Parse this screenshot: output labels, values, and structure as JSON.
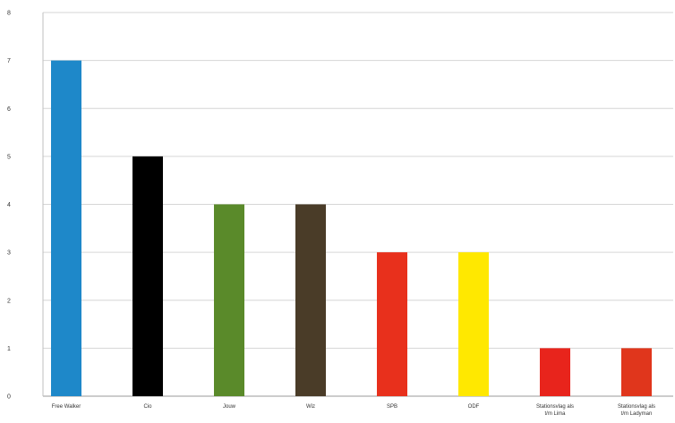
{
  "chart_data": {
    "type": "bar",
    "title": "",
    "xlabel": "",
    "ylabel": "",
    "ylim": [
      0,
      8
    ],
    "yticks": [
      0,
      1,
      2,
      3,
      4,
      5,
      6,
      7,
      8
    ],
    "grid": true,
    "legend": "none",
    "categories": [
      "Free Walker",
      "Cio",
      "Jouw",
      "Wiz",
      "SPB",
      "ODF",
      "Stationsvlag als t/m Lima",
      "Stationsvlag als t/m Ladyman"
    ],
    "values": [
      7,
      5,
      4,
      4,
      3,
      3,
      1,
      1
    ],
    "colors": [
      "#1e88c9",
      "#000000",
      "#5a8a2a",
      "#4a3c28",
      "#e8301c",
      "#ffe800",
      "#e8241c",
      "#e0361c"
    ]
  }
}
